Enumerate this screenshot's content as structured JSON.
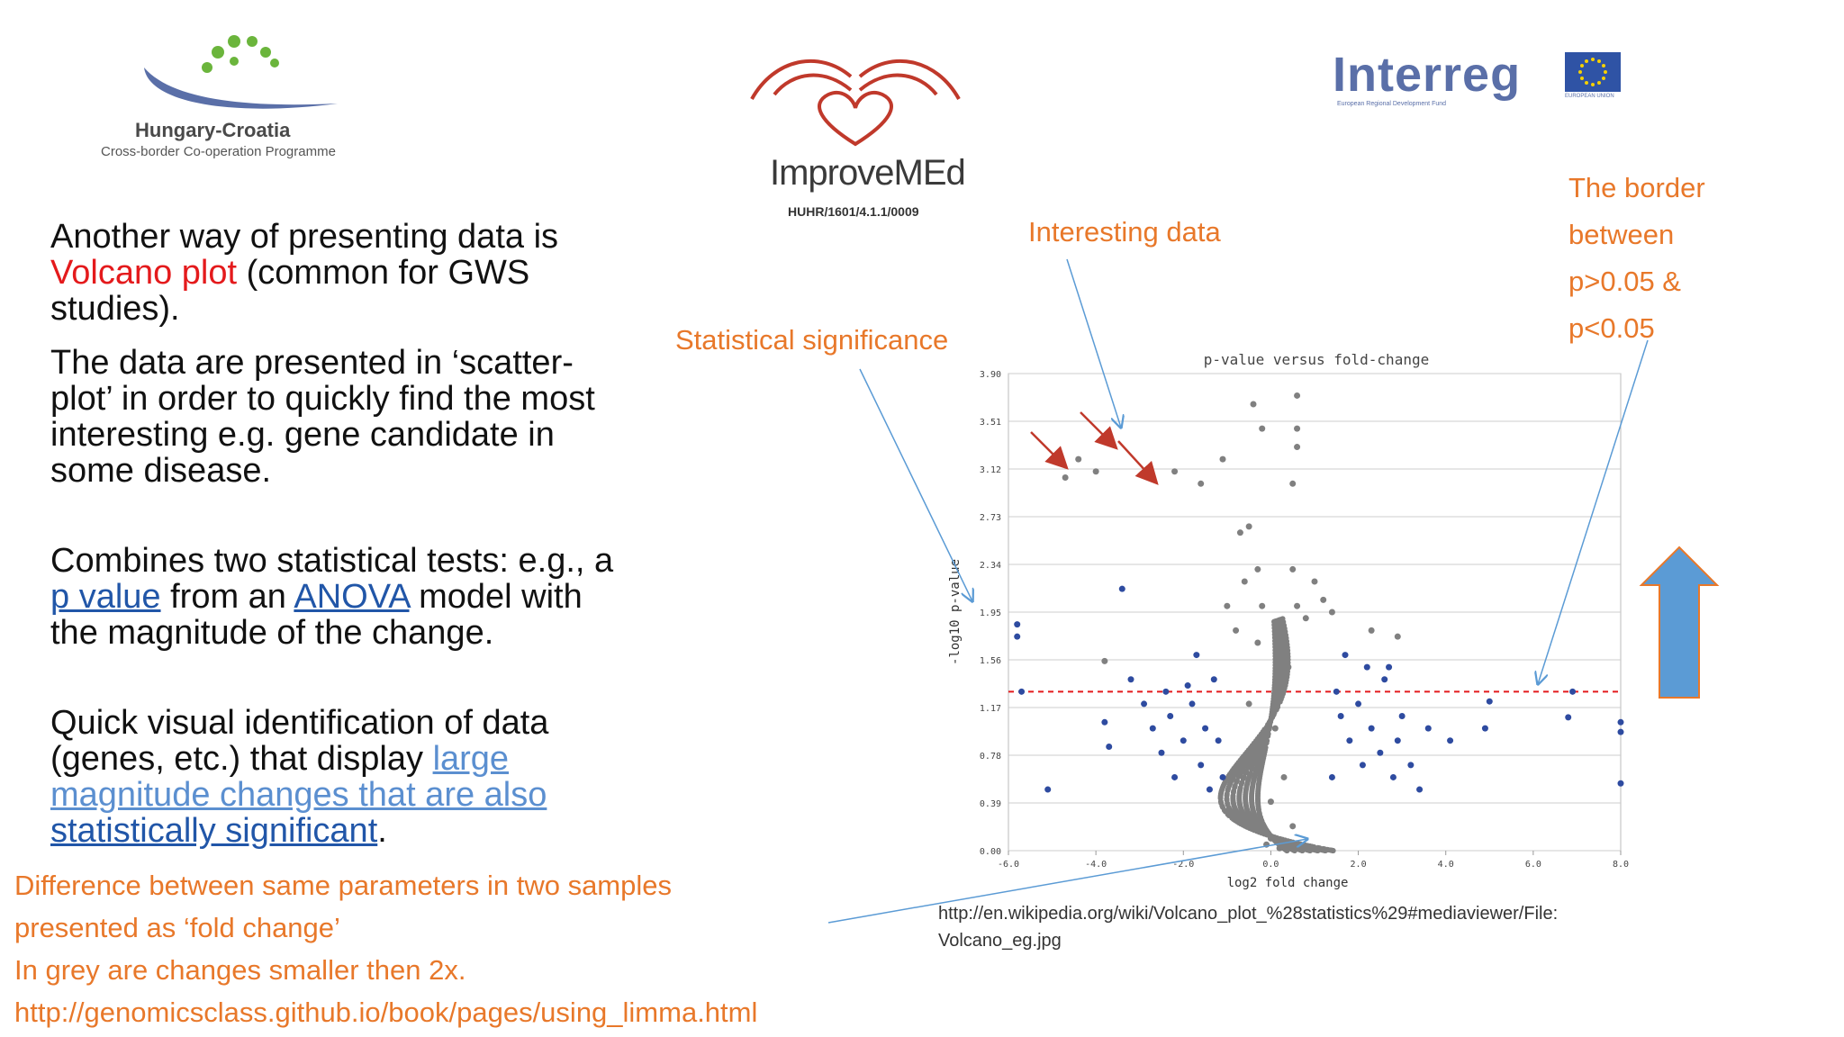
{
  "logos": {
    "hu_hr": {
      "title": "Hungary-Croatia",
      "subtitle": "Cross-border Co-operation Programme",
      "dot_color": "#6bb53c",
      "swoosh_color": "#5a6fa8"
    },
    "improvemed": {
      "name": "ImproveMEd",
      "code": "HUHR/1601/4.1.1/0009",
      "color": "#c0392b"
    },
    "interreg": {
      "name": "Interreg",
      "subtitle": "European Regional Development Fund",
      "eu_label": "EUROPEAN UNION",
      "color": "#5a6fa8"
    }
  },
  "text": {
    "b1_a": "Another way of presenting data is ",
    "b1_red": "Volcano plot",
    "b1_b": " (common for GWS studies).",
    "b2": "The data are presented in ‘scatter-plot’ in order to quickly find the most interesting  e.g. gene candidate in some disease.",
    "b3_a": "Combines two statistical tests: e.g., a ",
    "b3_link1": "p value",
    "b3_b": " from an ",
    "b3_link2": "ANOVA",
    "b3_c": " model with the magnitude of the change.",
    "b4_a": "Quick visual identification of data (genes, etc.) that display ",
    "b4_link1": "large magnitude changes that are also ",
    "b4_link2": "statistically significant",
    "b4_b": "."
  },
  "annotations": {
    "interesting": "Interesting data",
    "significance": "Statistical significance",
    "border_lines": [
      "The border",
      "between",
      "p>0.05 &",
      "p<0.05"
    ]
  },
  "bottom_lines": [
    "Difference between same parameters in two samples",
    "presented as ‘fold change’",
    "In grey  are changes smaller then 2x.",
    "http://genomicsclass.github.io/book/pages/using_limma.html"
  ],
  "source": {
    "line1": "http://en.wikipedia.org/wiki/Volcano_plot_%28statistics%29#mediaviewer/File:",
    "line2": "Volcano_eg.jpg"
  },
  "colors": {
    "orange": "#e8782a",
    "arrow_blue": "#5b9bd5",
    "grey_points": "#808080",
    "blue_points": "#2e4ba0",
    "red_line": "#e41a1c"
  },
  "chart_data": {
    "type": "scatter",
    "title": "p-value versus fold-change",
    "xlabel": "log2 fold change",
    "ylabel": "-log10 p-value",
    "xlim": [
      -6,
      8
    ],
    "ylim": [
      0,
      3.9
    ],
    "xticks": [
      -6,
      -4,
      -2,
      0,
      2,
      4,
      6,
      8
    ],
    "xtick_labels": [
      "-6.0",
      "-4.0",
      "-2.0",
      "0.0",
      "2.0",
      "4.0",
      "6.0",
      "8.0"
    ],
    "yticks": [
      0,
      0.39,
      0.78,
      1.17,
      1.56,
      1.95,
      2.34,
      2.73,
      3.12,
      3.51,
      3.9
    ],
    "ytick_labels": [
      "0.00",
      "0.39",
      "0.78",
      "1.17",
      "1.56",
      "1.95",
      "2.34",
      "2.73",
      "3.12",
      "3.51",
      "3.90"
    ],
    "threshold_y": 1.3,
    "grid": true,
    "series": [
      {
        "color": "#2e4ba0",
        "points": [
          [
            -5.8,
            1.85
          ],
          [
            -5.8,
            1.75
          ],
          [
            -5.7,
            1.3
          ],
          [
            -5.1,
            0.5
          ],
          [
            -3.4,
            2.14
          ],
          [
            -3.7,
            0.85
          ],
          [
            -3.8,
            1.05
          ],
          [
            -3.2,
            1.4
          ],
          [
            -2.9,
            1.2
          ],
          [
            -2.7,
            1.0
          ],
          [
            -2.5,
            0.8
          ],
          [
            -2.3,
            1.1
          ],
          [
            -2.2,
            0.6
          ],
          [
            -2.0,
            0.9
          ],
          [
            -1.8,
            1.2
          ],
          [
            -1.6,
            0.7
          ],
          [
            -1.5,
            1.0
          ],
          [
            -1.4,
            0.5
          ],
          [
            -1.9,
            1.35
          ],
          [
            -1.7,
            1.6
          ],
          [
            -2.4,
            1.3
          ],
          [
            -1.3,
            1.4
          ],
          [
            -1.1,
            0.6
          ],
          [
            -1.2,
            0.9
          ],
          [
            1.5,
            1.3
          ],
          [
            1.6,
            1.1
          ],
          [
            1.8,
            0.9
          ],
          [
            2.0,
            1.2
          ],
          [
            2.1,
            0.7
          ],
          [
            2.3,
            1.0
          ],
          [
            2.5,
            0.8
          ],
          [
            2.6,
            1.4
          ],
          [
            2.8,
            0.6
          ],
          [
            3.0,
            1.1
          ],
          [
            3.2,
            0.7
          ],
          [
            3.4,
            0.5
          ],
          [
            1.7,
            1.6
          ],
          [
            2.2,
            1.5
          ],
          [
            2.7,
            1.5
          ],
          [
            1.4,
            0.6
          ],
          [
            2.9,
            0.9
          ],
          [
            3.6,
            1.0
          ],
          [
            4.1,
            0.9
          ],
          [
            4.9,
            1.0
          ],
          [
            5.0,
            1.22
          ],
          [
            6.8,
            1.09
          ],
          [
            6.9,
            1.3
          ],
          [
            8.0,
            1.05
          ],
          [
            8.0,
            0.97
          ],
          [
            8.0,
            0.55
          ]
        ]
      },
      {
        "color": "#808080",
        "points": [
          [
            -2.2,
            3.1
          ],
          [
            -1.6,
            3.0
          ],
          [
            -1.1,
            3.2
          ],
          [
            -0.4,
            3.65
          ],
          [
            -0.2,
            3.45
          ],
          [
            -0.7,
            2.6
          ],
          [
            -0.5,
            2.65
          ],
          [
            -0.6,
            2.2
          ],
          [
            -0.3,
            2.3
          ],
          [
            -1.0,
            2.0
          ],
          [
            -0.8,
            1.8
          ],
          [
            -0.2,
            2.0
          ],
          [
            0.5,
            2.3
          ],
          [
            0.6,
            2.0
          ],
          [
            0.8,
            1.9
          ],
          [
            1.0,
            2.2
          ],
          [
            1.2,
            2.05
          ],
          [
            1.4,
            1.95
          ],
          [
            2.3,
            1.8
          ],
          [
            2.9,
            1.75
          ],
          [
            -0.3,
            1.7
          ],
          [
            0.2,
            1.6
          ],
          [
            0.4,
            1.5
          ],
          [
            -0.5,
            1.2
          ],
          [
            0.1,
            1.0
          ],
          [
            -0.2,
            0.8
          ],
          [
            0.3,
            0.6
          ],
          [
            0.0,
            0.4
          ],
          [
            -0.4,
            0.3
          ],
          [
            0.5,
            0.2
          ],
          [
            0.0,
            0.1
          ],
          [
            -0.1,
            0.05
          ],
          [
            0.2,
            0.02
          ],
          [
            -3.8,
            1.55
          ],
          [
            0.6,
            3.72
          ],
          [
            0.6,
            3.45
          ],
          [
            0.6,
            3.3
          ],
          [
            0.5,
            3.0
          ],
          [
            -4.7,
            3.05
          ],
          [
            -4.0,
            3.1
          ],
          [
            -4.4,
            3.2
          ]
        ]
      }
    ]
  }
}
